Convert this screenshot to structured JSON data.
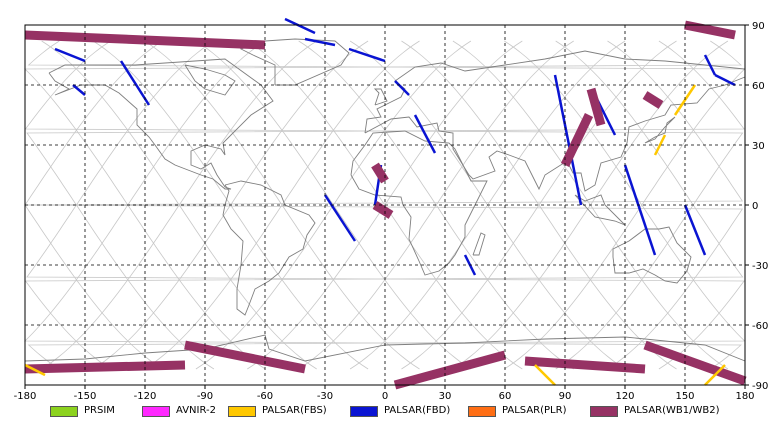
{
  "map": {
    "projection": "equirectangular",
    "lon_range": [
      -180,
      180
    ],
    "lat_range": [
      -90,
      90
    ],
    "x_ticks": [
      -180,
      -150,
      -120,
      -90,
      -60,
      -30,
      0,
      30,
      60,
      90,
      120,
      150,
      180
    ],
    "y_ticks": [
      90,
      60,
      30,
      0,
      -30,
      -60,
      -90
    ],
    "gridlines": "dashed",
    "orbit_tracks": "light-gray",
    "colors": {
      "background": "#ffffff",
      "coastline": "#7f7f7f",
      "grid": "#000000",
      "orbit": "#c8c8c8"
    }
  },
  "legend": [
    {
      "label": "PRSIM",
      "color": "#8cd21e"
    },
    {
      "label": "AVNIR-2",
      "color": "#ff28ff"
    },
    {
      "label": "PALSAR(FBS)",
      "color": "#ffc800"
    },
    {
      "label": "PALSAR(FBD)",
      "color": "#0a14d2"
    },
    {
      "label": "PALSAR(PLR)",
      "color": "#ff6e14"
    },
    {
      "label": "PALSAR(WB1/WB2)",
      "color": "#963264"
    }
  ],
  "chart_data": {
    "type": "map",
    "series": [
      {
        "name": "PALSAR(FBD)",
        "swaths": [
          [
            [
              -132,
              72
            ],
            [
              -118,
              50
            ]
          ],
          [
            [
              -165,
              78
            ],
            [
              -150,
              72
            ]
          ],
          [
            [
              -156,
              60
            ],
            [
              -150,
              55
            ]
          ],
          [
            [
              -35,
              86
            ],
            [
              -50,
              93
            ]
          ],
          [
            [
              -40,
              83
            ],
            [
              -25,
              80
            ]
          ],
          [
            [
              -18,
              78
            ],
            [
              0,
              72
            ]
          ],
          [
            [
              5,
              62
            ],
            [
              12,
              55
            ]
          ],
          [
            [
              15,
              45
            ],
            [
              25,
              26
            ]
          ],
          [
            [
              -2,
              20
            ],
            [
              -5,
              0
            ]
          ],
          [
            [
              -30,
              5
            ],
            [
              -15,
              -18
            ]
          ],
          [
            [
              40,
              -25
            ],
            [
              45,
              -35
            ]
          ],
          [
            [
              85,
              65
            ],
            [
              98,
              0
            ]
          ],
          [
            [
              105,
              55
            ],
            [
              115,
              35
            ]
          ],
          [
            [
              120,
              20
            ],
            [
              135,
              -25
            ]
          ],
          [
            [
              150,
              0
            ],
            [
              160,
              -25
            ]
          ],
          [
            [
              160,
              75
            ],
            [
              165,
              65
            ]
          ],
          [
            [
              165,
              65
            ],
            [
              175,
              60
            ]
          ]
        ]
      },
      {
        "name": "PALSAR(WB1/WB2)",
        "swaths": [
          [
            [
              -180,
              85
            ],
            [
              -60,
              80
            ]
          ],
          [
            [
              -180,
              -82
            ],
            [
              -100,
              -80
            ]
          ],
          [
            [
              -100,
              -70
            ],
            [
              -40,
              -82
            ]
          ],
          [
            [
              -5,
              20
            ],
            [
              0,
              12
            ]
          ],
          [
            [
              -5,
              0
            ],
            [
              3,
              -5
            ]
          ],
          [
            [
              60,
              -75
            ],
            [
              5,
              -90
            ]
          ],
          [
            [
              70,
              -78
            ],
            [
              130,
              -82
            ]
          ],
          [
            [
              130,
              -70
            ],
            [
              180,
              -88
            ]
          ],
          [
            [
              90,
              20
            ],
            [
              102,
              45
            ]
          ],
          [
            [
              103,
              58
            ],
            [
              108,
              40
            ]
          ],
          [
            [
              130,
              55
            ],
            [
              138,
              50
            ]
          ],
          [
            [
              175,
              85
            ],
            [
              150,
              90
            ]
          ]
        ]
      },
      {
        "name": "PALSAR(FBS)",
        "swaths": [
          [
            [
              135,
              25
            ],
            [
              140,
              35
            ]
          ],
          [
            [
              145,
              45
            ],
            [
              155,
              60
            ]
          ],
          [
            [
              75,
              -80
            ],
            [
              85,
              -90
            ]
          ],
          [
            [
              160,
              -90
            ],
            [
              170,
              -80
            ]
          ],
          [
            [
              -180,
              -80
            ],
            [
              -170,
              -85
            ]
          ]
        ]
      }
    ]
  }
}
